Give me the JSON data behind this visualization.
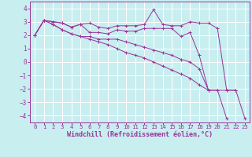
{
  "background_color": "#c8eef0",
  "grid_color": "#b0dde0",
  "line_color": "#993399",
  "marker": "+",
  "xlabel": "Windchill (Refroidissement éolien,°C)",
  "xlabel_fontsize": 6.0,
  "tick_fontsize": 5.2,
  "xlim": [
    -0.5,
    23.5
  ],
  "ylim": [
    -4.5,
    4.5
  ],
  "xticks": [
    0,
    1,
    2,
    3,
    4,
    5,
    6,
    7,
    8,
    9,
    10,
    11,
    12,
    13,
    14,
    15,
    16,
    17,
    18,
    19,
    20,
    21,
    22,
    23
  ],
  "yticks": [
    -4,
    -3,
    -2,
    -1,
    0,
    1,
    2,
    3,
    4
  ],
  "series": [
    [
      2.0,
      3.1,
      3.0,
      2.9,
      2.6,
      2.8,
      2.9,
      2.6,
      2.5,
      2.7,
      2.7,
      2.7,
      2.8,
      3.9,
      2.8,
      2.7,
      2.7,
      3.0,
      2.9,
      2.9,
      2.5,
      -2.1,
      -2.1,
      null
    ],
    [
      2.0,
      3.1,
      3.0,
      2.9,
      2.6,
      2.8,
      2.2,
      2.2,
      2.1,
      2.4,
      2.3,
      2.3,
      2.5,
      2.5,
      2.5,
      2.5,
      1.9,
      2.2,
      0.5,
      -2.1,
      null,
      null,
      null,
      null
    ],
    [
      2.0,
      3.1,
      2.8,
      2.4,
      2.1,
      1.9,
      1.9,
      1.7,
      1.7,
      1.7,
      1.5,
      1.3,
      1.1,
      0.9,
      0.7,
      0.5,
      0.2,
      0.0,
      -0.5,
      -2.1,
      -2.1,
      -4.2,
      null,
      null
    ],
    [
      2.0,
      3.1,
      2.8,
      2.4,
      2.1,
      1.9,
      1.7,
      1.5,
      1.3,
      1.0,
      0.7,
      0.5,
      0.3,
      0.0,
      -0.3,
      -0.6,
      -0.9,
      -1.2,
      -1.7,
      -2.1,
      -2.1,
      -2.1,
      -2.1,
      -4.2
    ]
  ]
}
